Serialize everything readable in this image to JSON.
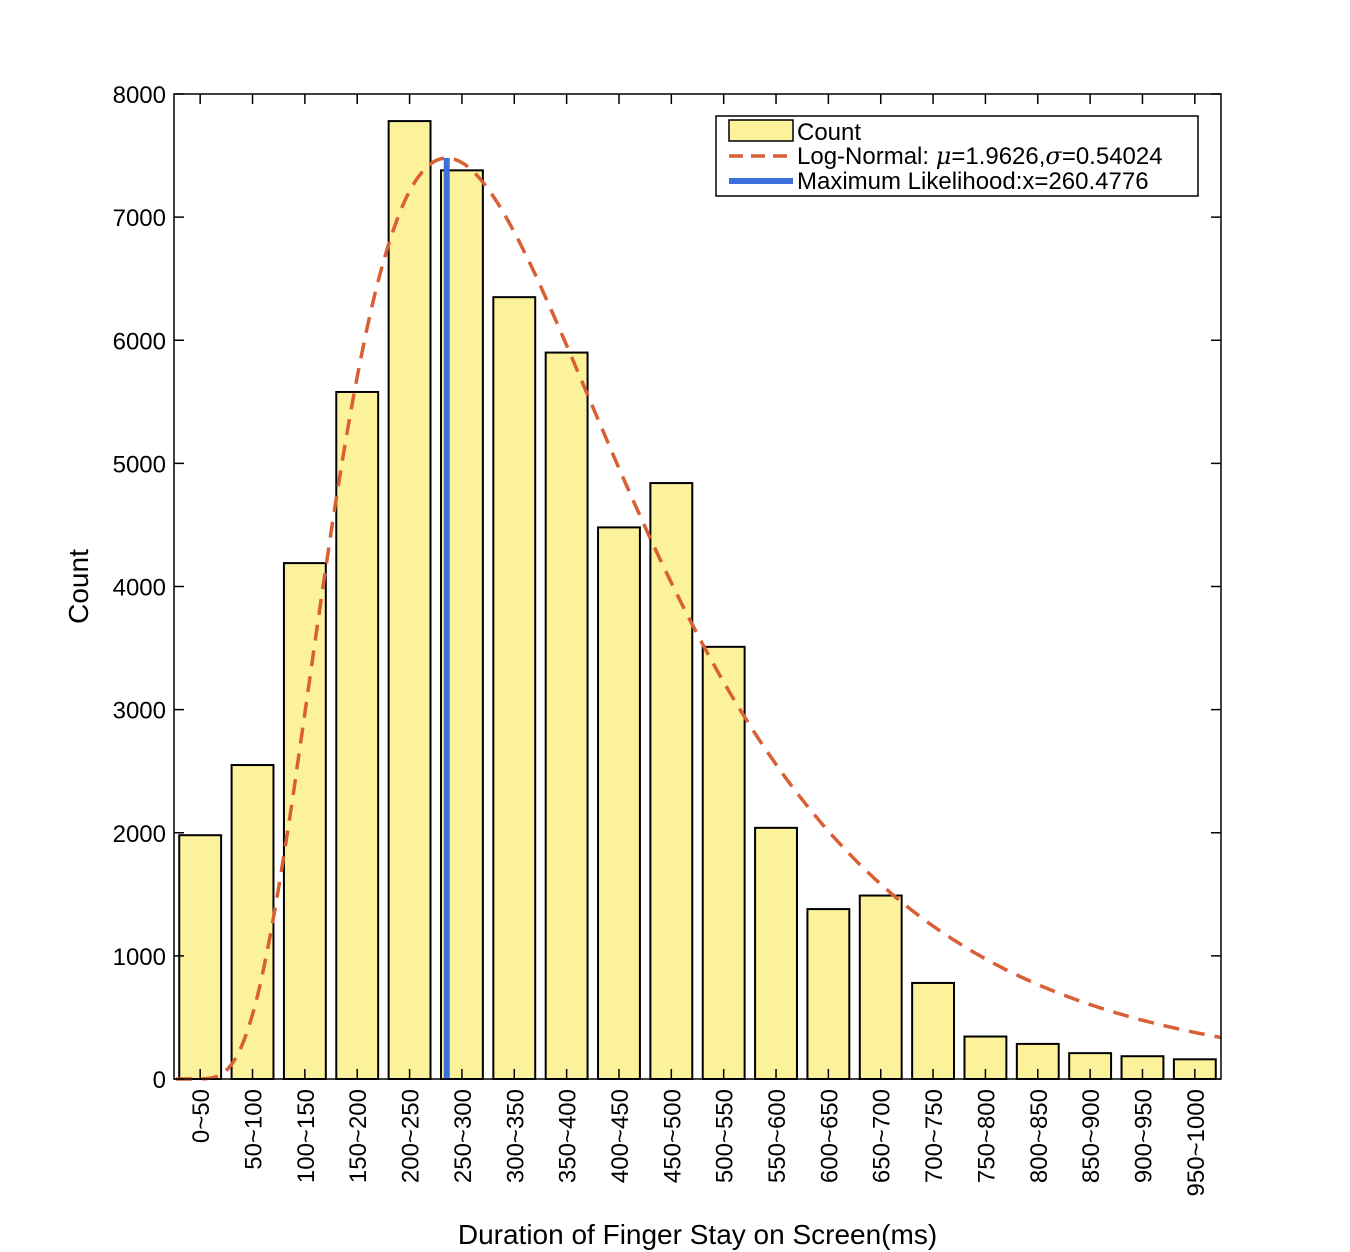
{
  "chart_data": {
    "type": "bar",
    "xlabel": "Duration of Finger Stay on Screen(ms)",
    "ylabel": "Count",
    "ylim": [
      0,
      8000
    ],
    "yticks": [
      0,
      1000,
      2000,
      3000,
      4000,
      5000,
      6000,
      7000,
      8000
    ],
    "categories": [
      "0~50",
      "50~100",
      "100~150",
      "150~200",
      "200~250",
      "250~300",
      "300~350",
      "350~400",
      "400~450",
      "450~500",
      "500~550",
      "550~600",
      "600~650",
      "650~700",
      "700~750",
      "750~800",
      "800~850",
      "850~900",
      "900~950",
      "950~1000"
    ],
    "series": [
      {
        "name": "Count",
        "type": "bar",
        "color": "#fcf29b",
        "values": [
          1980,
          2550,
          4190,
          5580,
          7780,
          7380,
          6350,
          5900,
          4480,
          4840,
          3510,
          2040,
          1380,
          1490,
          780,
          345,
          285,
          210,
          185,
          160
        ]
      },
      {
        "name": "Log-Normal",
        "type": "line",
        "style": "dashed",
        "color": "#d95f35",
        "mu": 1.9626,
        "sigma": 0.54024,
        "peak_value": 7480,
        "peak_x": 260.4776
      },
      {
        "name": "Maximum Likelihood",
        "type": "vline",
        "color": "#3d6fdb",
        "x": 260.4776,
        "y_top": 7480
      }
    ],
    "legend": {
      "placement": "top-right",
      "items": [
        {
          "label": "Count"
        },
        {
          "label_prefix": "Log-Normal: ",
          "mu_symbol": "μ",
          "mu_text": "=1.9626,",
          "sigma_symbol": "σ",
          "sigma_text": "=0.54024"
        },
        {
          "label": "Maximum Likelihood:x=260.4776"
        }
      ]
    },
    "grid": false
  }
}
